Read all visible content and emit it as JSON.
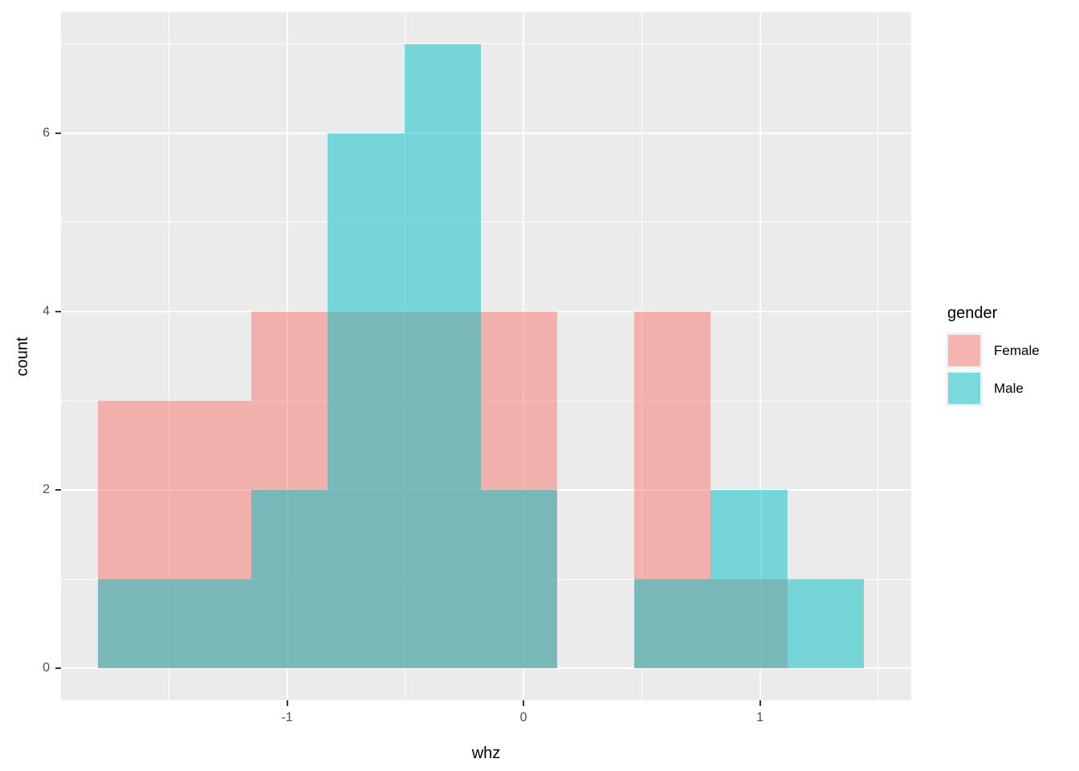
{
  "chart_data": {
    "type": "histogram",
    "title": "",
    "xlabel": "whz",
    "ylabel": "count",
    "x_ticks": [
      -1,
      0,
      1
    ],
    "y_ticks": [
      0,
      2,
      4,
      6
    ],
    "x_minor_ticks": [
      -1.5,
      -0.5,
      0.5,
      1.5
    ],
    "y_minor_ticks": [
      1,
      3,
      5,
      7
    ],
    "xlim": [
      -1.956,
      1.64
    ],
    "ylim": [
      -0.36,
      7.36
    ],
    "grid": "on",
    "bin_edges": [
      -1.8,
      -1.476,
      -1.152,
      -0.828,
      -0.504,
      -0.18,
      0.144,
      0.468,
      0.792,
      1.116,
      1.44
    ],
    "series": [
      {
        "name": "Female",
        "color": "#F8766D",
        "counts": [
          3,
          3,
          4,
          4,
          4,
          4,
          0,
          4,
          1,
          0
        ]
      },
      {
        "name": "Male",
        "color": "#00BFC4",
        "counts": [
          1,
          1,
          2,
          6,
          7,
          2,
          0,
          1,
          2,
          1
        ]
      }
    ],
    "fill_alpha": 0.5,
    "panel_color": "#EBEBEB",
    "tick_label_color": "#4D4D4D",
    "legend": {
      "title": "gender",
      "position": "right",
      "entries": [
        "Female",
        "Male"
      ]
    }
  }
}
